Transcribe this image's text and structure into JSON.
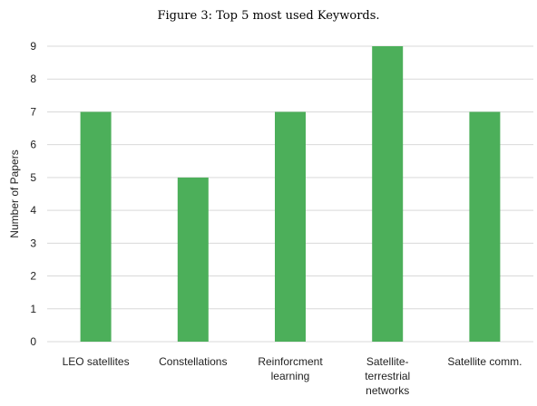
{
  "chart_data": {
    "type": "bar",
    "title": "Figure 3: Top 5 most used Keywords.",
    "xlabel": "",
    "ylabel": "Number of Papers",
    "ylim": [
      0,
      9
    ],
    "yticks": [
      0,
      1,
      2,
      3,
      4,
      5,
      6,
      7,
      8,
      9
    ],
    "categories": [
      [
        "LEO satellites"
      ],
      [
        "Constellations"
      ],
      [
        "Reinforcment",
        "learning"
      ],
      [
        "Satellite-",
        "terrestrial",
        "networks"
      ],
      [
        "Satellite comm."
      ]
    ],
    "values": [
      7,
      5,
      7,
      9,
      7
    ],
    "bar_color": "#4caf5a",
    "grid": true,
    "grid_color": "#d9d9d9"
  }
}
